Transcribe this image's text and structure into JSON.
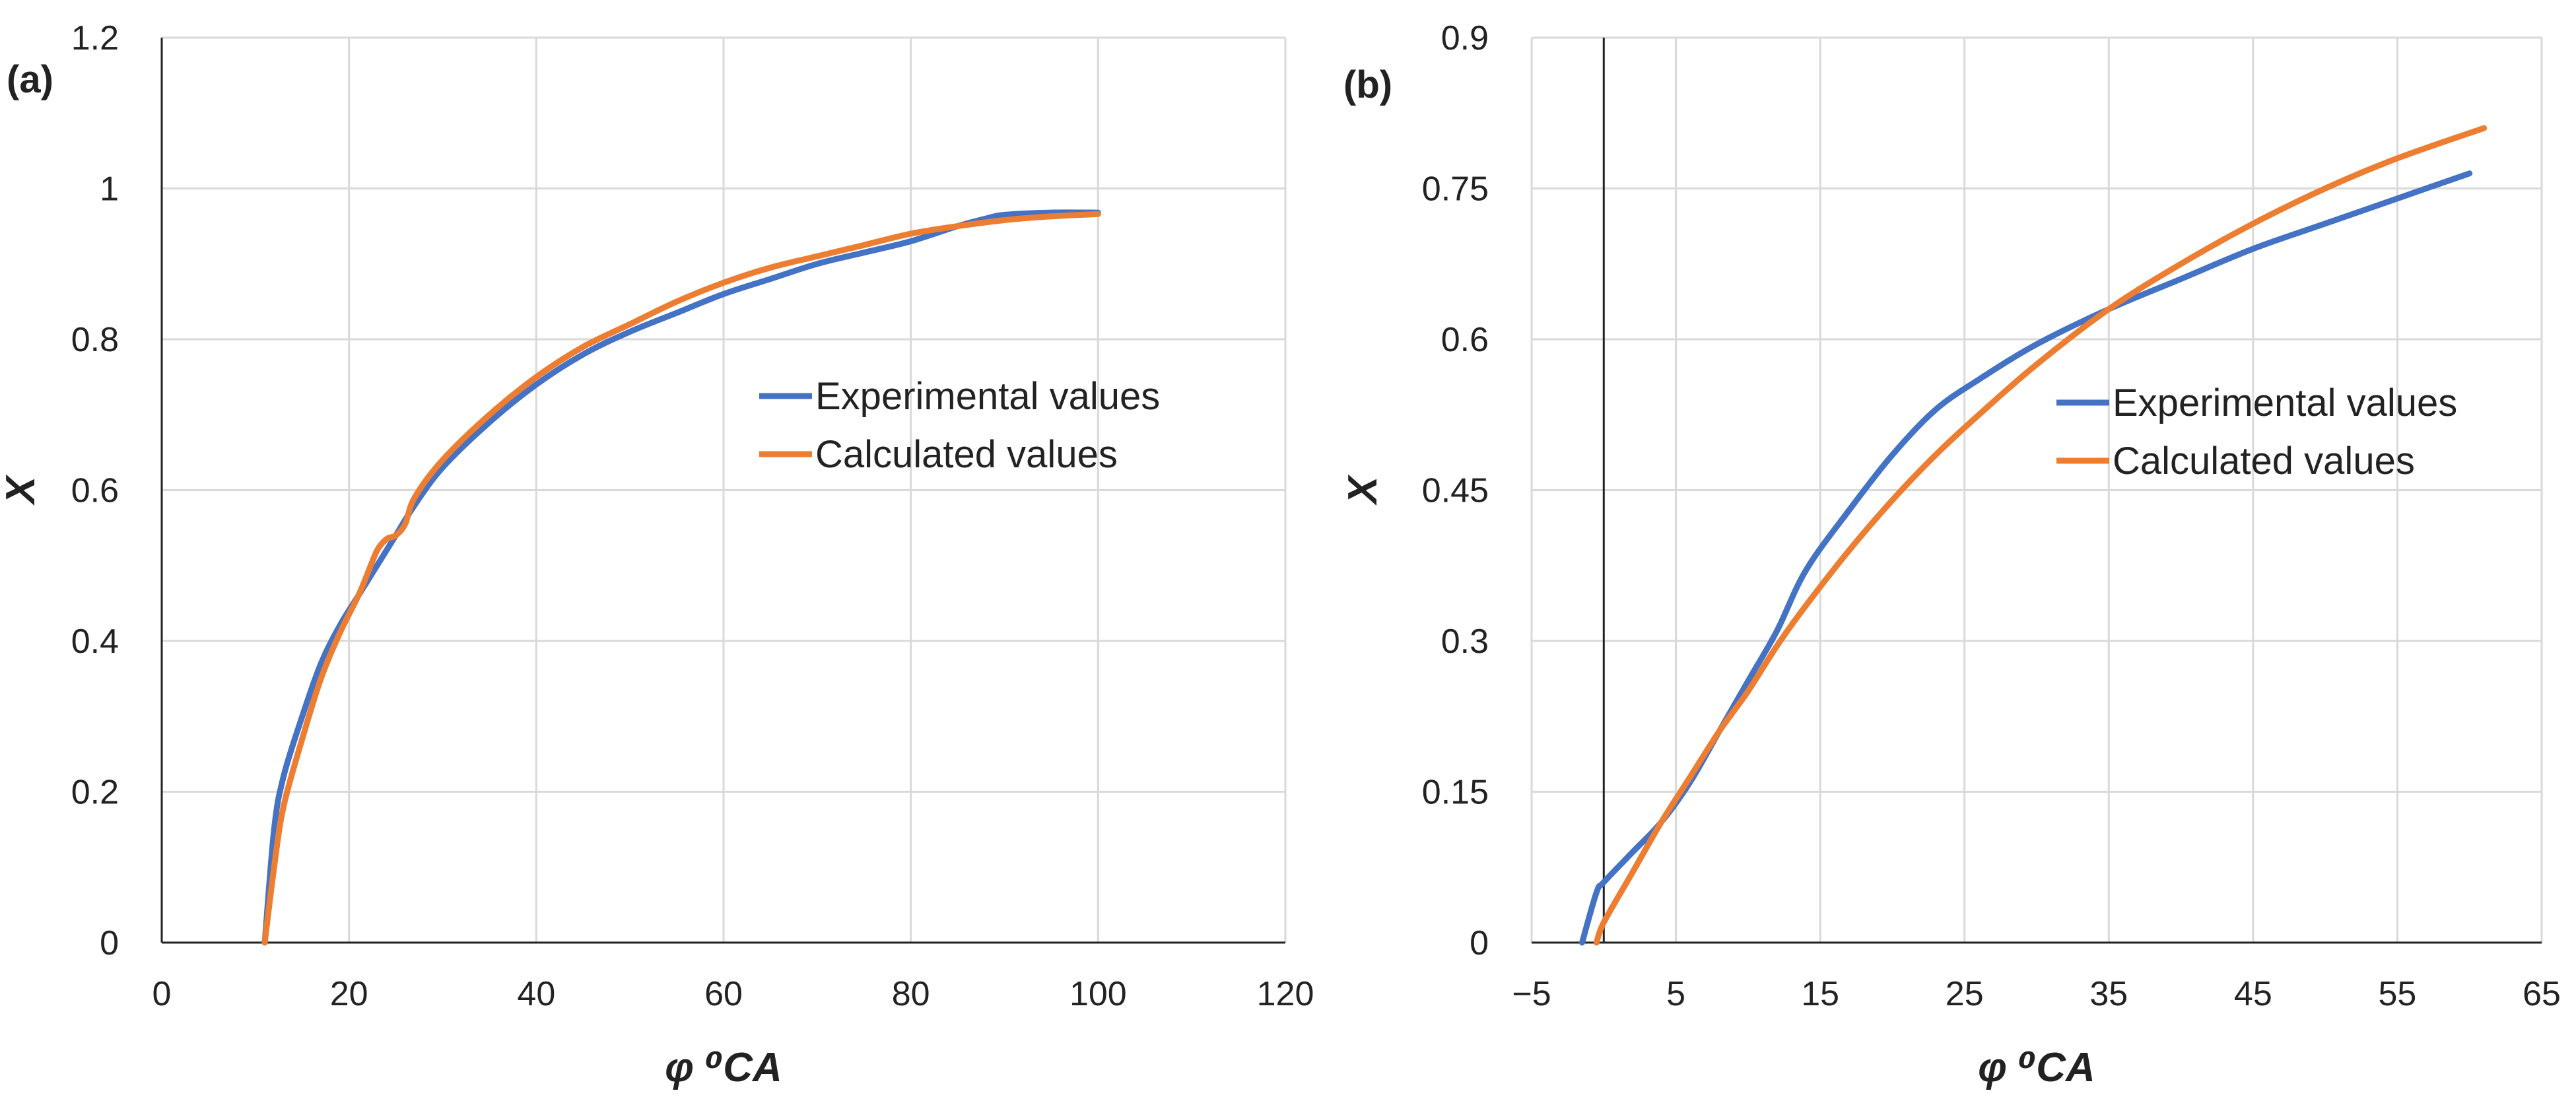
{
  "chart_data": [
    {
      "type": "line",
      "panel": "(a)",
      "title": "",
      "xlabel": "φ ⁰CA",
      "ylabel": "X",
      "xlim": [
        0,
        120
      ],
      "ylim": [
        0,
        1.2
      ],
      "xticks": [
        "0",
        "20",
        "40",
        "60",
        "80",
        "100",
        "120"
      ],
      "yticks": [
        "0",
        "0.2",
        "0.4",
        "0.6",
        "0.8",
        "1",
        "1.2"
      ],
      "grid": true,
      "legend_position": "right-middle",
      "series": [
        {
          "name": "Experimental values",
          "color": "#4472C4",
          "x": [
            11,
            12,
            13,
            15,
            17,
            19,
            21,
            23,
            25,
            27,
            30,
            35,
            40,
            45,
            50,
            55,
            60,
            65,
            70,
            75,
            80,
            85,
            88,
            90,
            95,
            100
          ],
          "y": [
            0,
            0.15,
            0.22,
            0.3,
            0.37,
            0.42,
            0.46,
            0.5,
            0.54,
            0.58,
            0.63,
            0.69,
            0.74,
            0.78,
            0.81,
            0.835,
            0.86,
            0.88,
            0.9,
            0.915,
            0.93,
            0.95,
            0.96,
            0.965,
            0.968,
            0.968
          ]
        },
        {
          "name": "Calculated values",
          "color": "#ED7D31",
          "x": [
            11,
            12,
            13,
            15,
            17,
            19,
            21,
            22,
            23,
            24,
            25,
            26,
            27,
            30,
            35,
            40,
            45,
            50,
            55,
            60,
            65,
            70,
            75,
            80,
            85,
            90,
            95,
            100
          ],
          "y": [
            0,
            0.1,
            0.18,
            0.27,
            0.35,
            0.41,
            0.46,
            0.49,
            0.52,
            0.535,
            0.54,
            0.555,
            0.59,
            0.64,
            0.7,
            0.75,
            0.79,
            0.82,
            0.85,
            0.875,
            0.895,
            0.91,
            0.925,
            0.94,
            0.95,
            0.958,
            0.963,
            0.966
          ]
        }
      ]
    },
    {
      "type": "line",
      "panel": "(b)",
      "title": "",
      "xlabel": "φ ⁰CA",
      "ylabel": "X",
      "xlim": [
        -5,
        65
      ],
      "ylim": [
        0,
        0.9
      ],
      "xticks": [
        "−5",
        "5",
        "15",
        "25",
        "35",
        "45",
        "55",
        "65"
      ],
      "yticks": [
        "0",
        "0.15",
        "0.3",
        "0.45",
        "0.6",
        "0.75",
        "0.9"
      ],
      "grid": true,
      "legend_position": "right-middle",
      "series": [
        {
          "name": "Experimental values",
          "color": "#4472C4",
          "x": [
            -1.5,
            -0.5,
            0,
            2,
            4,
            6,
            8,
            10,
            12,
            14,
            17,
            20,
            23,
            26,
            30,
            35,
            40,
            45,
            50,
            55,
            60
          ],
          "y": [
            0,
            0.05,
            0.06,
            0.09,
            0.12,
            0.16,
            0.21,
            0.26,
            0.31,
            0.37,
            0.43,
            0.485,
            0.53,
            0.56,
            0.595,
            0.63,
            0.66,
            0.69,
            0.715,
            0.74,
            0.765
          ]
        },
        {
          "name": "Calculated values",
          "color": "#ED7D31",
          "x": [
            -0.5,
            0,
            2,
            4,
            6,
            8,
            10,
            12,
            14,
            17,
            20,
            23,
            26,
            30,
            35,
            40,
            45,
            50,
            55,
            61
          ],
          "y": [
            0,
            0.02,
            0.07,
            0.12,
            0.165,
            0.21,
            0.25,
            0.295,
            0.335,
            0.39,
            0.44,
            0.485,
            0.525,
            0.575,
            0.63,
            0.675,
            0.715,
            0.75,
            0.78,
            0.81
          ]
        }
      ]
    }
  ],
  "panel_labels": {
    "a": "(a)",
    "b": "(b)"
  }
}
